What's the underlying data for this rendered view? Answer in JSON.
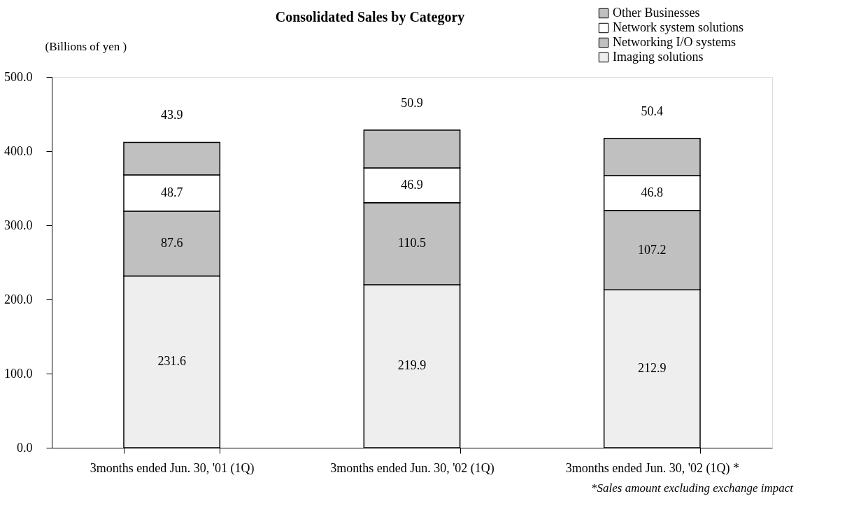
{
  "chart_data": {
    "type": "bar",
    "stacked": true,
    "title": "Consolidated Sales by Category",
    "ylabel": "(Billions of yen )",
    "categories": [
      "3months ended Jun. 30, '01 (1Q)",
      "3months ended Jun. 30, '02 (1Q)",
      "3months ended Jun. 30, '02 (1Q) *"
    ],
    "series": [
      {
        "name": "Imaging solutions",
        "color": "#eeeeee",
        "values": [
          231.6,
          219.9,
          212.9
        ]
      },
      {
        "name": "Networking I/O systems",
        "color": "#c0c0c0",
        "values": [
          87.6,
          110.5,
          107.2
        ]
      },
      {
        "name": "Network system solutions",
        "color": "#ffffff",
        "values": [
          48.7,
          46.9,
          46.8
        ]
      },
      {
        "name": "Other Businesses",
        "color": "#c0c0c0",
        "values": [
          43.9,
          50.9,
          50.4
        ]
      }
    ],
    "ylim": [
      0,
      500
    ],
    "yticks": [
      {
        "value": 0,
        "label": "0.0"
      },
      {
        "value": 100,
        "label": "100.0"
      },
      {
        "value": 200,
        "label": "200.0"
      },
      {
        "value": 300,
        "label": "300.0"
      },
      {
        "value": 400,
        "label": "400.0"
      },
      {
        "value": 500,
        "label": "500.0"
      }
    ],
    "data_labels": true,
    "legend": "top right",
    "grid": false,
    "annotations": [
      "*Sales amount excluding exchange impact"
    ]
  }
}
